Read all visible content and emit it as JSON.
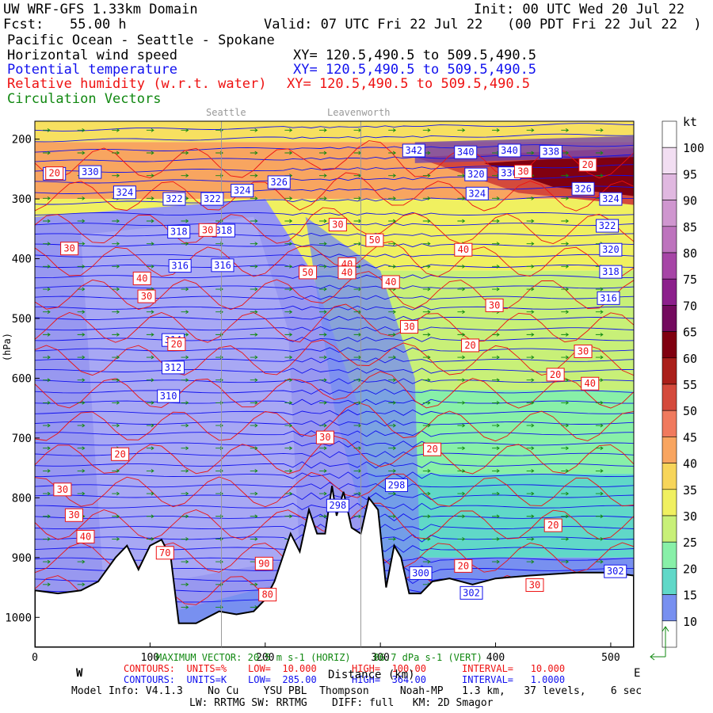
{
  "header": {
    "title": "UW WRF-GFS 1.33km Domain",
    "init": "Init: 00 UTC Wed 20 Jul 22",
    "fcst_label": "Fcst:",
    "fcst_value": "55.00 h",
    "valid": "Valid: 07 UTC Fri 22 Jul 22",
    "local": "(00 PDT Fri 22 Jul 22  )",
    "region": "Pacific Ocean - Seattle - Spokane",
    "field1": "Horizontal wind speed",
    "xy1": "XY= 120.5,490.5 to 509.5,490.5",
    "field2": "Potential temperature",
    "xy2": "XY= 120.5,490.5 to 509.5,490.5",
    "field3": "Relative humidity (w.r.t. water)",
    "xy3": "XY= 120.5,490.5 to 509.5,490.5",
    "field4": "Circulation Vectors"
  },
  "locations": [
    "Seattle",
    "Leavenworth"
  ],
  "colors": {
    "theta": "#1010ee",
    "rh": "#ee1111",
    "vectors": "#118811",
    "terrain": "#ffffff"
  },
  "chart_data": {
    "type": "heatmap",
    "title": "Horizontal wind speed",
    "xlabel": "Distance (km)",
    "ylabel": "(hPa)",
    "xlim": [
      0,
      520
    ],
    "ylim": [
      1050,
      170
    ],
    "x_ticks": [
      "0",
      "100",
      "200",
      "300",
      "400",
      "500"
    ],
    "y_ticks": [
      "200",
      "300",
      "400",
      "500",
      "600",
      "700",
      "800",
      "900",
      "1000"
    ],
    "west_label": "W",
    "east_label": "E",
    "colorbar": {
      "unit": "kt",
      "levels": [
        "100",
        "95",
        "90",
        "85",
        "80",
        "75",
        "70",
        "65",
        "60",
        "55",
        "50",
        "45",
        "40",
        "35",
        "30",
        "25",
        "20",
        "15",
        "10"
      ],
      "colors": [
        "#ffffff",
        "#f2def2",
        "#e0b8e0",
        "#cf96cf",
        "#bd73bd",
        "#a645a6",
        "#8c1f8c",
        "#730a5e",
        "#800010",
        "#aa1f1a",
        "#d44a3c",
        "#f07a5e",
        "#f8a560",
        "#f7d55a",
        "#f0f060",
        "#c8f078",
        "#88f0a8",
        "#60d8c8",
        "#7890f0",
        "#ffffff"
      ]
    },
    "theta_labels": [
      {
        "value": "330",
        "x": 48,
        "p": 255
      },
      {
        "value": "328",
        "x": 17,
        "p": 258
      },
      {
        "value": "324",
        "x": 78,
        "p": 289
      },
      {
        "value": "322",
        "x": 121,
        "p": 300
      },
      {
        "value": "322",
        "x": 154,
        "p": 300
      },
      {
        "value": "324",
        "x": 180,
        "p": 286
      },
      {
        "value": "326",
        "x": 212,
        "p": 272
      },
      {
        "value": "318",
        "x": 125,
        "p": 355
      },
      {
        "value": "318",
        "x": 164,
        "p": 353
      },
      {
        "value": "316",
        "x": 126,
        "p": 412
      },
      {
        "value": "316",
        "x": 163,
        "p": 411
      },
      {
        "value": "314",
        "x": 120,
        "p": 536
      },
      {
        "value": "312",
        "x": 120,
        "p": 582
      },
      {
        "value": "310",
        "x": 116,
        "p": 630
      },
      {
        "value": "342",
        "x": 329,
        "p": 219
      },
      {
        "value": "340",
        "x": 374,
        "p": 222
      },
      {
        "value": "340",
        "x": 412,
        "p": 219
      },
      {
        "value": "338",
        "x": 448,
        "p": 221
      },
      {
        "value": "320",
        "x": 383,
        "p": 259
      },
      {
        "value": "330",
        "x": 412,
        "p": 257
      },
      {
        "value": "324",
        "x": 384,
        "p": 291
      },
      {
        "value": "326",
        "x": 476,
        "p": 283
      },
      {
        "value": "324",
        "x": 500,
        "p": 300
      },
      {
        "value": "322",
        "x": 497,
        "p": 345
      },
      {
        "value": "320",
        "x": 500,
        "p": 385
      },
      {
        "value": "318",
        "x": 500,
        "p": 422
      },
      {
        "value": "316",
        "x": 498,
        "p": 466
      },
      {
        "value": "298",
        "x": 314,
        "p": 779
      },
      {
        "value": "298",
        "x": 263,
        "p": 813
      },
      {
        "value": "300",
        "x": 335,
        "p": 926
      },
      {
        "value": "302",
        "x": 379,
        "p": 959
      },
      {
        "value": "302",
        "x": 504,
        "p": 923
      }
    ],
    "rh_labels": [
      {
        "value": "30",
        "x": 30,
        "p": 383
      },
      {
        "value": "40",
        "x": 93,
        "p": 433
      },
      {
        "value": "30",
        "x": 97,
        "p": 463
      },
      {
        "value": "20",
        "x": 123,
        "p": 543
      },
      {
        "value": "30",
        "x": 150,
        "p": 352
      },
      {
        "value": "20",
        "x": 74,
        "p": 727
      },
      {
        "value": "30",
        "x": 24,
        "p": 786
      },
      {
        "value": "30",
        "x": 34,
        "p": 829
      },
      {
        "value": "40",
        "x": 44,
        "p": 865
      },
      {
        "value": "70",
        "x": 113,
        "p": 892
      },
      {
        "value": "90",
        "x": 199,
        "p": 910
      },
      {
        "value": "80",
        "x": 202,
        "p": 962
      },
      {
        "value": "30",
        "x": 263,
        "p": 343
      },
      {
        "value": "50",
        "x": 237,
        "p": 423
      },
      {
        "value": "40",
        "x": 271,
        "p": 409
      },
      {
        "value": "40",
        "x": 271,
        "p": 423
      },
      {
        "value": "50",
        "x": 295,
        "p": 369
      },
      {
        "value": "40",
        "x": 372,
        "p": 385
      },
      {
        "value": "40",
        "x": 309,
        "p": 439
      },
      {
        "value": "30",
        "x": 325,
        "p": 514
      },
      {
        "value": "30",
        "x": 399,
        "p": 478
      },
      {
        "value": "20",
        "x": 378,
        "p": 545
      },
      {
        "value": "30",
        "x": 476,
        "p": 555
      },
      {
        "value": "20",
        "x": 452,
        "p": 594
      },
      {
        "value": "40",
        "x": 482,
        "p": 609
      },
      {
        "value": "20",
        "x": 345,
        "p": 719
      },
      {
        "value": "30",
        "x": 252,
        "p": 699
      },
      {
        "value": "20",
        "x": 450,
        "p": 846
      },
      {
        "value": "20",
        "x": 372,
        "p": 914
      },
      {
        "value": "30",
        "x": 434,
        "p": 946
      },
      {
        "value": "20",
        "x": 17,
        "p": 257
      },
      {
        "value": "30",
        "x": 424,
        "p": 254
      },
      {
        "value": "20",
        "x": 480,
        "p": 243
      }
    ],
    "max_vector": "MAXIMUM VECTOR: 20.5 m s-1 (HORIZ)    86.7 dPa s-1 (VERT)",
    "rh_contours": {
      "label": "CONTOURS:  UNITS=%",
      "low": "LOW=  10.000",
      "high": "HIGH=  100.00",
      "interval": "INTERVAL=   10.000"
    },
    "theta_contours": {
      "label": "CONTOURS:  UNITS=K",
      "low": "LOW=  285.00",
      "high": "HIGH=  364.00",
      "interval": "INTERVAL=   1.0000"
    }
  },
  "footer": {
    "model": "Model Info: V4.1.3    No Cu    YSU PBL  Thompson     Noah-MP   1.3 km,   37 levels,    6 sec",
    "physics": "LW: RRTMG SW: RRTMG    DIFF: full   KM: 2D Smagor"
  }
}
